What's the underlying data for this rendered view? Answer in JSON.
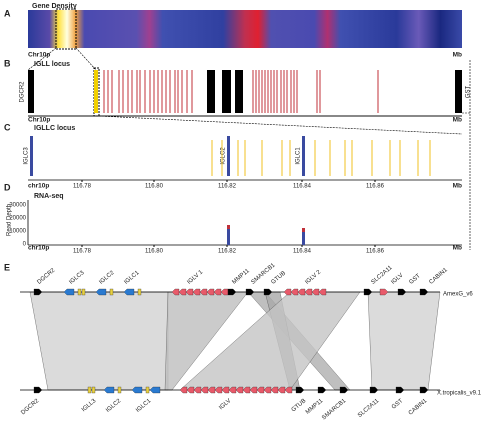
{
  "panels": {
    "a": {
      "letter": "A",
      "title": "Gene Density",
      "axis_label": "Chr10p",
      "unit": "Mb"
    },
    "b": {
      "letter": "B",
      "title": "IGLL locus",
      "left_gene": "DGCR2",
      "right_gene": "GST",
      "axis_label": "Chr10p",
      "unit": "Mb"
    },
    "c": {
      "letter": "C",
      "title": "IGLLC locus",
      "genes": [
        "IGLC3",
        "IGLC2",
        "IGLC1"
      ],
      "axis_label": "chr10p",
      "unit": "Mb",
      "ticks": [
        "116.78",
        "116.80",
        "116.82",
        "116.84",
        "116.86"
      ]
    },
    "d": {
      "letter": "D",
      "title": "RNA-seq",
      "y_label": "Read Depth",
      "yticks": [
        "30000",
        "20000",
        "10000",
        "0"
      ],
      "axis_label": "chr10p",
      "unit": "Mb",
      "ticks": [
        "116.78",
        "116.80",
        "116.82",
        "116.84",
        "116.86"
      ]
    },
    "e": {
      "letter": "E",
      "top": {
        "name": "AmexG_v6",
        "genes": [
          "DGCR2",
          "IGLC3",
          "IGLC2",
          "IGLC1",
          "IGLV 1",
          "MMP11",
          "SMARCB1",
          "GTUB",
          "IGLV 2",
          "SLC2A11",
          "IGLV",
          "GST",
          "CABIN1"
        ]
      },
      "bottom": {
        "name": "X.tropicalis_v9.1",
        "genes": [
          "DGCR2",
          "IGLL3",
          "IGLC2",
          "IGLC1",
          "IGLV",
          "GTUB",
          "MMP11",
          "SMARCB1",
          "SLC2A11",
          "GST",
          "CABIN1"
        ]
      }
    }
  }
}
